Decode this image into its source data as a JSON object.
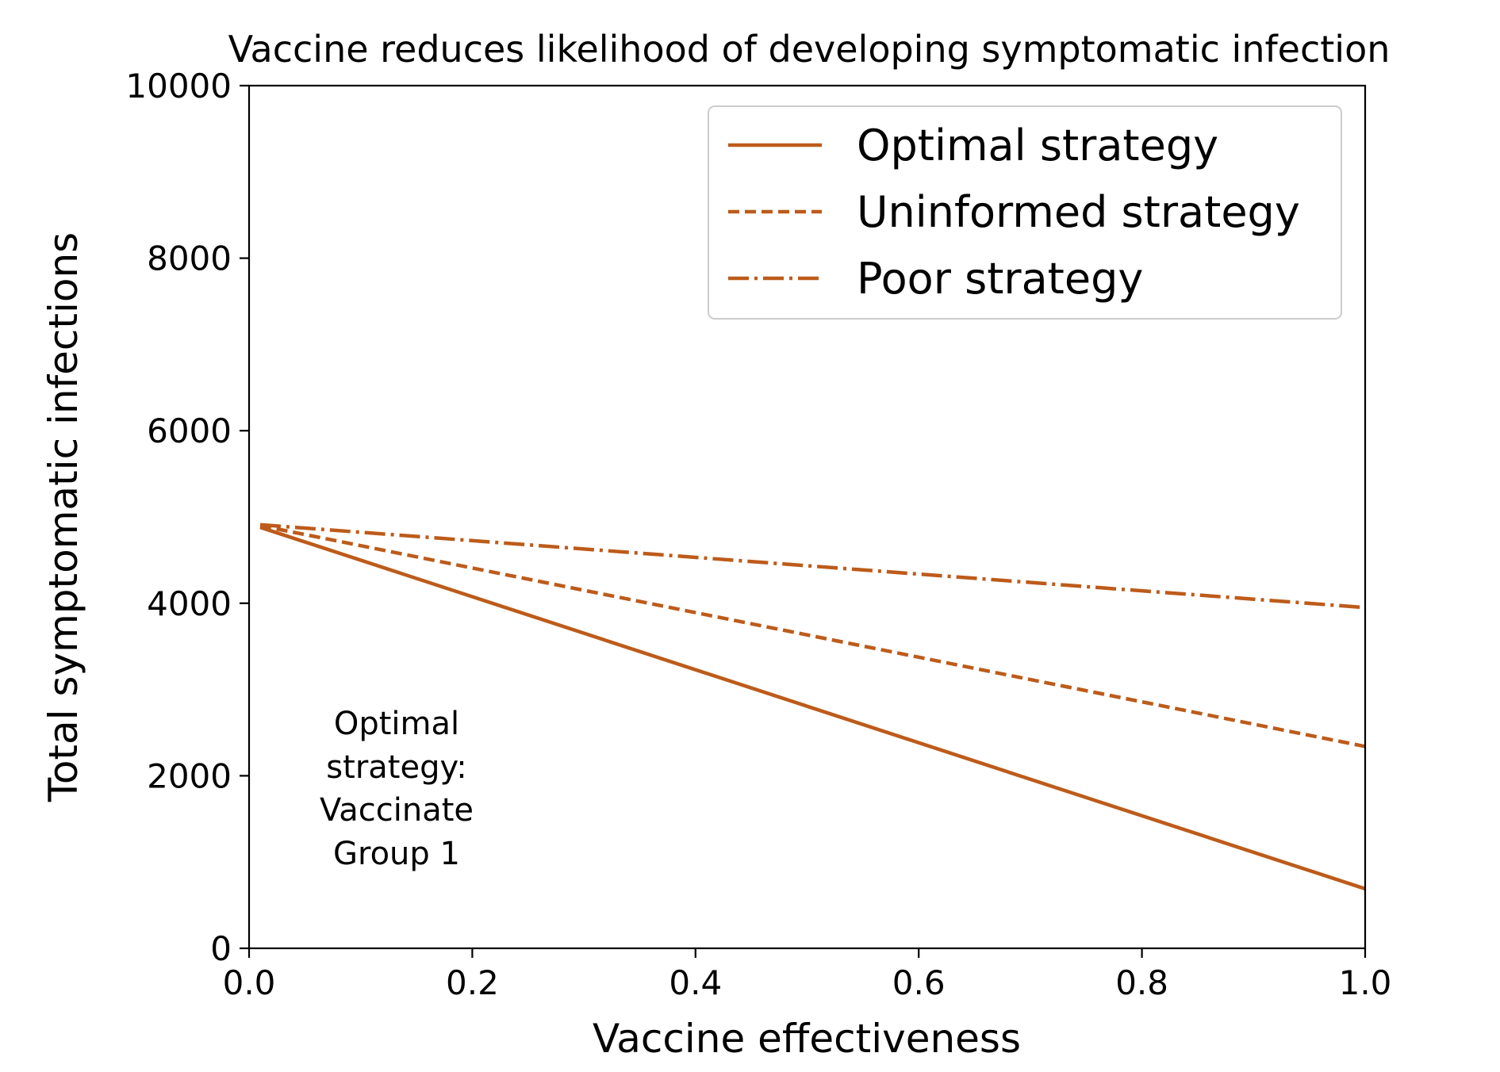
{
  "chart_data": {
    "type": "line",
    "title": "Vaccine reduces likelihood of developing symptomatic infection",
    "xlabel": "Vaccine effectiveness",
    "ylabel": "Total symptomatic infections",
    "xlim": [
      0.0,
      1.0
    ],
    "ylim": [
      0,
      10000
    ],
    "xticks": [
      "0.0",
      "0.2",
      "0.4",
      "0.6",
      "0.8",
      "1.0"
    ],
    "yticks": [
      "0",
      "2000",
      "4000",
      "6000",
      "8000",
      "10000"
    ],
    "grid": false,
    "legend_position": "top-right",
    "line_color": "#bd5b1a",
    "series": [
      {
        "name": "Optimal strategy",
        "style": "solid",
        "x": [
          0.01,
          1.0
        ],
        "y": [
          4880,
          690
        ]
      },
      {
        "name": "Uninformed strategy",
        "style": "dashed",
        "x": [
          0.01,
          1.0
        ],
        "y": [
          4900,
          2340
        ]
      },
      {
        "name": "Poor strategy",
        "style": "dashdot",
        "x": [
          0.01,
          1.0
        ],
        "y": [
          4910,
          3950
        ]
      }
    ],
    "annotation": {
      "lines": [
        "Optimal",
        "strategy:",
        "Vaccinate",
        "Group 1"
      ]
    }
  }
}
